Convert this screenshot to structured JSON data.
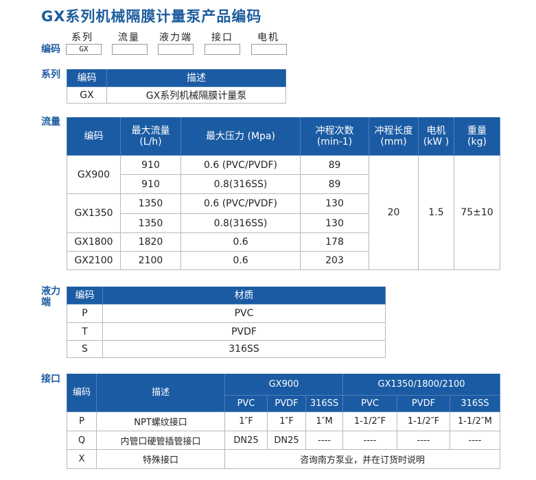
{
  "title": "GX系列机械隔膜计量泵产品编码",
  "code": {
    "label": "编码",
    "fields": [
      {
        "label": "系列",
        "value": "GX"
      },
      {
        "label": "流量",
        "value": ""
      },
      {
        "label": "液力端",
        "value": ""
      },
      {
        "label": "接口",
        "value": ""
      },
      {
        "label": "电机",
        "value": ""
      }
    ]
  },
  "series": {
    "label": "系列",
    "headers": [
      "编码",
      "描述"
    ],
    "rows": [
      [
        "GX",
        "GX系列机械隔膜计量泵"
      ]
    ]
  },
  "flow": {
    "label": "流量",
    "headers": [
      "编码",
      "最大流量\n(L/h)",
      "最大压力 (Mpa)",
      "冲程次数\n(min-1)",
      "冲程长度\n(mm)",
      "电机\n(kW )",
      "重量\n(kg)"
    ],
    "rows": [
      {
        "code": "GX900",
        "flow": "910",
        "pressure": "0.6 (PVC/PVDF)",
        "strokes": "89"
      },
      {
        "flow": "910",
        "pressure": "0.8(316SS)",
        "strokes": "89"
      },
      {
        "code": "GX1350",
        "flow": "1350",
        "pressure": "0.6 (PVC/PVDF)",
        "strokes": "130"
      },
      {
        "flow": "1350",
        "pressure": "0.8(316SS)",
        "strokes": "130"
      },
      {
        "code": "GX1800",
        "flow": "1820",
        "pressure": "0.6",
        "strokes": "178"
      },
      {
        "code": "GX2100",
        "flow": "2100",
        "pressure": "0.6",
        "strokes": "203"
      }
    ],
    "stroke_length": "20",
    "motor": "1.5",
    "weight": "75±10"
  },
  "hydraulic": {
    "label": "液力\n端",
    "headers": [
      "编码",
      "材质"
    ],
    "rows": [
      [
        "P",
        "PVC"
      ],
      [
        "T",
        "PVDF"
      ],
      [
        "S",
        "316SS"
      ]
    ]
  },
  "interface": {
    "label": "接口",
    "headers": [
      "编码",
      "描述"
    ],
    "groups": [
      "GX900",
      "GX1350/1800/2100"
    ],
    "materials": [
      "PVC",
      "PVDF",
      "316SS",
      "PVC",
      "PVDF",
      "316SS"
    ],
    "rows": [
      {
        "code": "P",
        "desc": "NPT螺纹接口",
        "vals": [
          "1″F",
          "1″F",
          "1″M",
          "1-1/2″F",
          "1-1/2″F",
          "1-1/2″M"
        ]
      },
      {
        "code": "Q",
        "desc": "内管口硬管插管接口",
        "vals": [
          "DN25",
          "DN25",
          "----",
          "----",
          "----",
          "----"
        ]
      },
      {
        "code": "X",
        "desc": "特殊接口",
        "note": "咨询南方泵业，并在订货时说明"
      }
    ]
  }
}
